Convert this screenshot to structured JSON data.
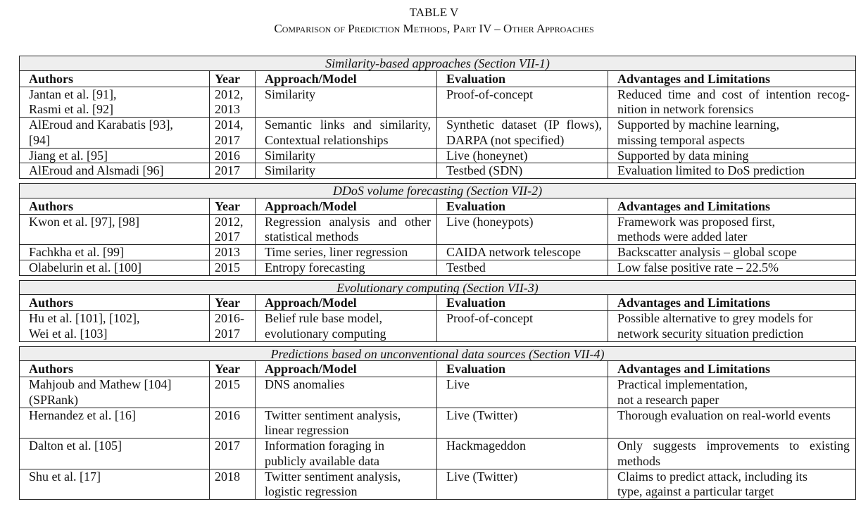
{
  "title": "TABLE V",
  "subtitle": "Comparison of Prediction Methods, Part IV – Other Approaches",
  "columns": [
    "Authors",
    "Year",
    "Approach/Model",
    "Evaluation",
    "Advantages and Limitations"
  ],
  "sections": [
    {
      "caption": "Similarity-based approaches (Section VII-1)",
      "rows": [
        [
          [
            "Jantan et al. [91],",
            "Rasmi et al. [92]"
          ],
          [
            "2012,",
            "2013"
          ],
          [
            "Similarity"
          ],
          [
            "Proof-of-concept"
          ],
          [
            "Reduced time and cost of intention recog-",
            "nition in network forensics"
          ]
        ],
        [
          [
            "AlEroud and Karabatis [93],",
            "[94]"
          ],
          [
            "2014,",
            "2017"
          ],
          [
            "Semantic links and similarity,",
            "Contextual relationships"
          ],
          [
            "Synthetic dataset (IP flows),",
            "DARPA (not specified)"
          ],
          [
            "Supported by machine learning,",
            "missing temporal aspects"
          ]
        ],
        [
          [
            "Jiang et al. [95]"
          ],
          [
            "2016"
          ],
          [
            "Similarity"
          ],
          [
            "Live (honeynet)"
          ],
          [
            "Supported by data mining"
          ]
        ],
        [
          [
            "AlEroud and Alsmadi [96]"
          ],
          [
            "2017"
          ],
          [
            "Similarity"
          ],
          [
            "Testbed (SDN)"
          ],
          [
            "Evaluation limited to DoS prediction"
          ]
        ]
      ]
    },
    {
      "caption": "DDoS volume forecasting (Section VII-2)",
      "rows": [
        [
          [
            "Kwon et al. [97], [98]"
          ],
          [
            "2012,",
            "2017"
          ],
          [
            "Regression analysis and other",
            "statistical methods"
          ],
          [
            "Live (honeypots)"
          ],
          [
            "Framework was proposed first,",
            "methods were added later"
          ]
        ],
        [
          [
            "Fachkha et al. [99]"
          ],
          [
            "2013"
          ],
          [
            "Time series, liner regression"
          ],
          [
            "CAIDA network telescope"
          ],
          [
            "Backscatter analysis – global scope"
          ]
        ],
        [
          [
            "Olabelurin et al. [100]"
          ],
          [
            "2015"
          ],
          [
            "Entropy forecasting"
          ],
          [
            "Testbed"
          ],
          [
            "Low false positive rate – 22.5%"
          ]
        ]
      ]
    },
    {
      "caption": "Evolutionary computing (Section VII-3)",
      "rows": [
        [
          [
            "Hu et al. [101], [102],",
            "Wei et al. [103]"
          ],
          [
            "2016-",
            "2017"
          ],
          [
            "Belief rule base model,",
            "evolutionary computing"
          ],
          [
            "Proof-of-concept"
          ],
          [
            "Possible alternative to grey models for",
            "network security situation prediction"
          ]
        ]
      ]
    },
    {
      "caption": "Predictions based on unconventional data sources (Section VII-4)",
      "rows": [
        [
          [
            "Mahjoub and Mathew [104]",
            "(SPRank)"
          ],
          [
            "2015"
          ],
          [
            "DNS anomalies"
          ],
          [
            "Live"
          ],
          [
            "Practical implementation,",
            "not a research paper"
          ]
        ],
        [
          [
            "Hernandez et al. [16]"
          ],
          [
            "2016"
          ],
          [
            "Twitter sentiment analysis,",
            "linear regression"
          ],
          [
            "Live (Twitter)"
          ],
          [
            "Thorough evaluation on real-world events"
          ]
        ],
        [
          [
            "Dalton et al. [105]"
          ],
          [
            "2017"
          ],
          [
            "Information foraging in",
            "publicly available data"
          ],
          [
            "Hackmageddon"
          ],
          [
            "Only suggests improvements to existing",
            "methods"
          ]
        ],
        [
          [
            "Shu et al. [17]"
          ],
          [
            "2018"
          ],
          [
            "Twitter sentiment analysis,",
            "logistic regression"
          ],
          [
            "Live (Twitter)"
          ],
          [
            "Claims to predict attack, including its",
            "type, against a particular target"
          ]
        ]
      ]
    }
  ]
}
